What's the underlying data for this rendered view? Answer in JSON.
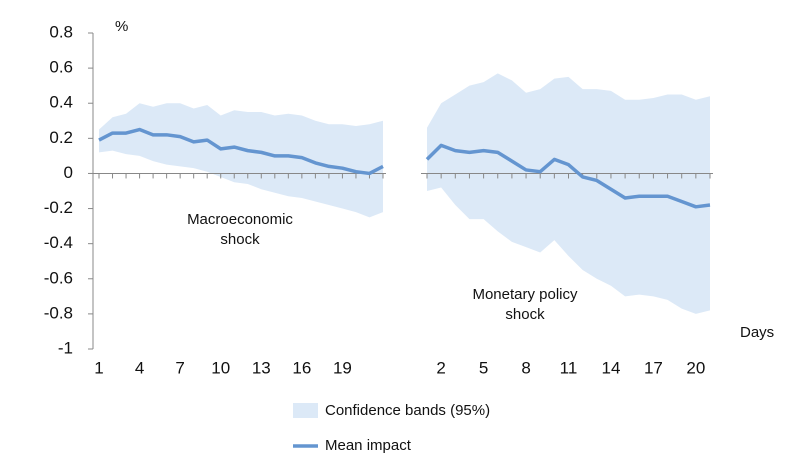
{
  "chart_data": {
    "type": "line",
    "y_label": "%",
    "x_label": "Days",
    "ylim": [
      -1,
      0.8
    ],
    "yticks": [
      -1,
      -0.8,
      -0.6,
      -0.4,
      -0.2,
      0,
      0.2,
      0.4,
      0.6,
      0.8
    ],
    "panels": [
      {
        "annotation": [
          "Macroeconomic",
          "shock"
        ],
        "x": [
          1,
          2,
          3,
          4,
          5,
          6,
          7,
          8,
          9,
          10,
          11,
          12,
          13,
          14,
          15,
          16,
          17,
          18,
          19,
          20,
          21,
          22
        ],
        "xlim": [
          1,
          22
        ],
        "xticks": [
          1,
          4,
          7,
          10,
          13,
          16,
          19
        ]
      },
      {
        "annotation": [
          "Monetary policy",
          "shock"
        ],
        "x": [
          1,
          2,
          3,
          4,
          5,
          6,
          7,
          8,
          9,
          10,
          11,
          12,
          13,
          14,
          15,
          16,
          17,
          18,
          19,
          20,
          21
        ],
        "xlim": [
          1,
          21
        ],
        "xticks": [
          2,
          5,
          8,
          11,
          14,
          17,
          20
        ]
      }
    ],
    "series": [
      {
        "name": "Confidence bands (95%)",
        "color": "#dce9f7",
        "upper": [
          [
            0.25,
            0.32,
            0.34,
            0.4,
            0.38,
            0.4,
            0.4,
            0.37,
            0.39,
            0.33,
            0.36,
            0.35,
            0.35,
            0.33,
            0.34,
            0.33,
            0.3,
            0.28,
            0.28,
            0.27,
            0.28,
            0.3
          ],
          [
            0.26,
            0.4,
            0.45,
            0.5,
            0.52,
            0.57,
            0.53,
            0.46,
            0.48,
            0.54,
            0.55,
            0.48,
            0.48,
            0.47,
            0.42,
            0.42,
            0.43,
            0.45,
            0.45,
            0.42,
            0.44
          ]
        ],
        "lower": [
          [
            0.12,
            0.13,
            0.11,
            0.1,
            0.07,
            0.05,
            0.04,
            0.03,
            0.01,
            -0.02,
            -0.05,
            -0.06,
            -0.09,
            -0.11,
            -0.13,
            -0.14,
            -0.16,
            -0.18,
            -0.2,
            -0.22,
            -0.25,
            -0.22
          ],
          [
            -0.1,
            -0.08,
            -0.18,
            -0.26,
            -0.26,
            -0.33,
            -0.39,
            -0.42,
            -0.45,
            -0.38,
            -0.47,
            -0.55,
            -0.6,
            -0.64,
            -0.7,
            -0.69,
            -0.7,
            -0.72,
            -0.77,
            -0.8,
            -0.78
          ]
        ]
      },
      {
        "name": "Mean impact",
        "color": "#6495d0",
        "values": [
          [
            0.19,
            0.23,
            0.23,
            0.25,
            0.22,
            0.22,
            0.21,
            0.18,
            0.19,
            0.14,
            0.15,
            0.13,
            0.12,
            0.1,
            0.1,
            0.09,
            0.06,
            0.04,
            0.03,
            0.01,
            0.0,
            0.04
          ],
          [
            0.08,
            0.16,
            0.13,
            0.12,
            0.13,
            0.12,
            0.07,
            0.02,
            0.01,
            0.08,
            0.05,
            -0.02,
            -0.04,
            -0.09,
            -0.14,
            -0.13,
            -0.13,
            -0.13,
            -0.16,
            -0.19,
            -0.18
          ]
        ]
      }
    ]
  }
}
